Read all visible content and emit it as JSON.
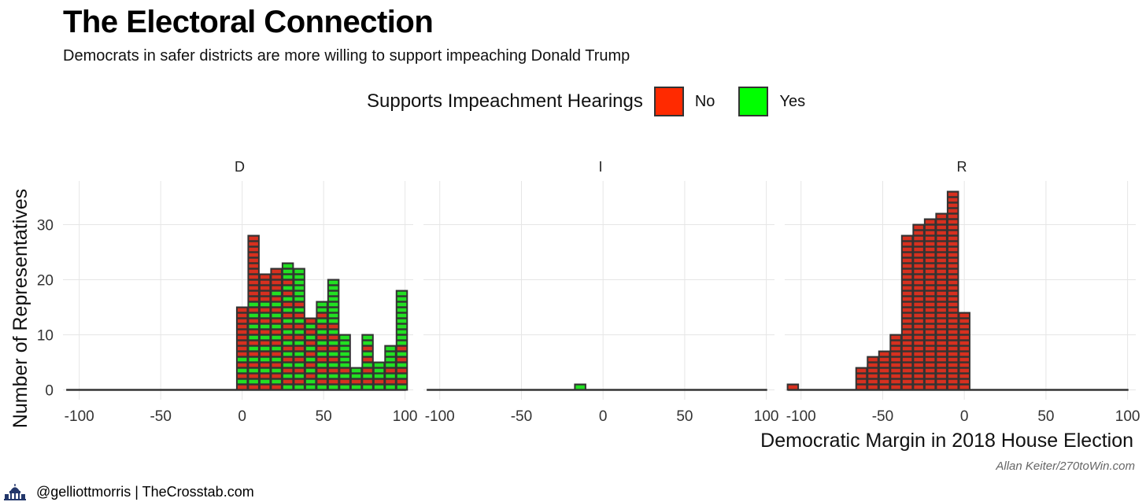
{
  "title": "The Electoral Connection",
  "subtitle": "Democrats in safer districts are more willing to support impeaching Donald Trump",
  "legend": {
    "title": "Supports Impeachment Hearings",
    "items": [
      {
        "label": "No",
        "color": "#ff2a00"
      },
      {
        "label": "Yes",
        "color": "#00ff00"
      }
    ]
  },
  "credit": "Allan Keiter/270toWin.com",
  "footer": {
    "text": "@gelliottmorris | TheCrosstab.com",
    "logo_icon": "capitol-dome-icon"
  },
  "chart_data": {
    "type": "bar",
    "subtype": "faceted stacked dot histogram",
    "facet_labels": [
      "D",
      "I",
      "R"
    ],
    "xlabel": "Democratic Margin in 2018 House Election",
    "ylabel": "Number of Representatives",
    "xlim": [
      -110,
      105
    ],
    "ylim": [
      0,
      38
    ],
    "x_ticks": [
      -100,
      -50,
      0,
      50,
      100
    ],
    "x_tick_labels": [
      "-100",
      "-50",
      "0",
      "50",
      "100"
    ],
    "y_ticks": [
      0,
      10,
      20,
      30
    ],
    "y_tick_labels": [
      "0",
      "10",
      "20",
      "30"
    ],
    "bin_width": 7,
    "grid": true,
    "legend_position": "top",
    "colors": {
      "No": "#d7301f",
      "Yes": "#22e022",
      "baseline": "#333333"
    },
    "facets": [
      {
        "name": "D",
        "bins": [
          {
            "x": 0,
            "no": 12,
            "yes": 3
          },
          {
            "x": 7,
            "no": 20,
            "yes": 8
          },
          {
            "x": 14,
            "no": 13,
            "yes": 8
          },
          {
            "x": 21,
            "no": 13,
            "yes": 9
          },
          {
            "x": 28,
            "no": 10,
            "yes": 13
          },
          {
            "x": 35,
            "no": 8,
            "yes": 14
          },
          {
            "x": 42,
            "no": 6,
            "yes": 7
          },
          {
            "x": 49,
            "no": 7,
            "yes": 9
          },
          {
            "x": 56,
            "no": 6,
            "yes": 14
          },
          {
            "x": 63,
            "no": 2,
            "yes": 8
          },
          {
            "x": 70,
            "no": 1,
            "yes": 3
          },
          {
            "x": 77,
            "no": 4,
            "yes": 6
          },
          {
            "x": 84,
            "no": 1,
            "yes": 4
          },
          {
            "x": 91,
            "no": 2,
            "yes": 6
          },
          {
            "x": 98,
            "no": 4,
            "yes": 14
          }
        ]
      },
      {
        "name": "I",
        "bins": [
          {
            "x": -14,
            "no": 0,
            "yes": 1
          }
        ]
      },
      {
        "name": "R",
        "bins": [
          {
            "x": -105,
            "no": 1,
            "yes": 0
          },
          {
            "x": -63,
            "no": 4,
            "yes": 0
          },
          {
            "x": -56,
            "no": 6,
            "yes": 0
          },
          {
            "x": -49,
            "no": 7,
            "yes": 0
          },
          {
            "x": -42,
            "no": 10,
            "yes": 0
          },
          {
            "x": -35,
            "no": 28,
            "yes": 0
          },
          {
            "x": -28,
            "no": 30,
            "yes": 0
          },
          {
            "x": -21,
            "no": 31,
            "yes": 0
          },
          {
            "x": -14,
            "no": 32,
            "yes": 0
          },
          {
            "x": -7,
            "no": 36,
            "yes": 0
          },
          {
            "x": 0,
            "no": 14,
            "yes": 0
          }
        ]
      }
    ]
  }
}
